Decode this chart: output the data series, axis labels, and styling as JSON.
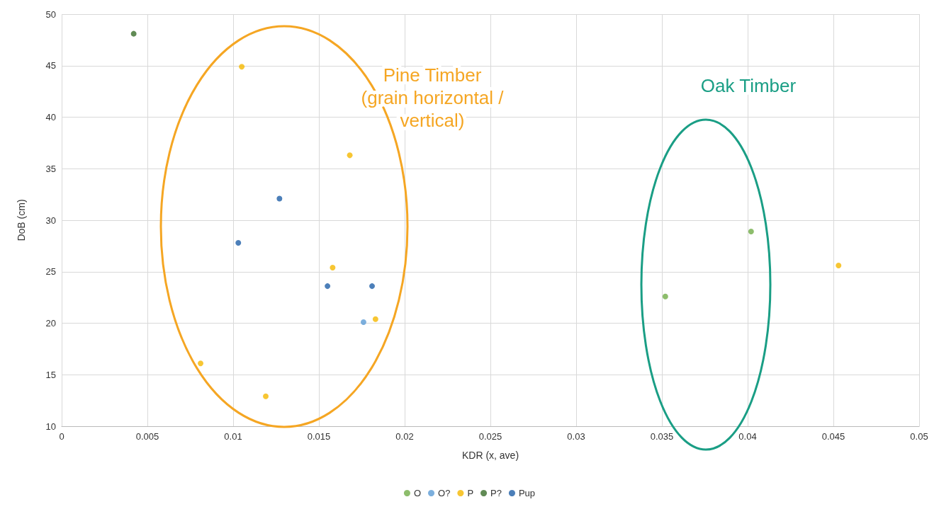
{
  "chart_data": {
    "type": "scatter",
    "xlabel": "KDR (x, ave)",
    "ylabel": "DoB (cm)",
    "xlim": [
      0,
      0.05
    ],
    "xticks": [
      0,
      0.005,
      0.01,
      0.015,
      0.02,
      0.025,
      0.03,
      0.035,
      0.04,
      0.045,
      0.05
    ],
    "ylim": [
      10,
      50
    ],
    "yticks": [
      10,
      15,
      20,
      25,
      30,
      35,
      40,
      45,
      50
    ],
    "grid": true,
    "legend": "bottom",
    "marker": "circle",
    "series": [
      {
        "name": "O",
        "color": "#70ad47",
        "x": [
          0.0402,
          0.0352
        ],
        "values": [
          28.9,
          22.6
        ]
      },
      {
        "name": "O?",
        "color": "#5b9bd5",
        "x": [
          0.0176
        ],
        "values": [
          20.1
        ]
      },
      {
        "name": "P",
        "color": "#f5b800",
        "x": [
          0.0105,
          0.0168,
          0.0158,
          0.0183,
          0.0081,
          0.0119,
          0.0453
        ],
        "values": [
          44.9,
          36.3,
          25.4,
          20.4,
          16.1,
          12.9,
          25.6
        ]
      },
      {
        "name": "P?",
        "color": "#3a6e2a",
        "x": [
          0.0042
        ],
        "values": [
          48.1
        ]
      },
      {
        "name": "Pup",
        "color": "#1f5fa8",
        "x": [
          0.0127,
          0.0103,
          0.0155,
          0.0181
        ],
        "values": [
          32.1,
          27.8,
          23.6,
          23.6
        ]
      }
    ],
    "annotations": [
      "Pine Timber\n(grain horizontal /\nvertical)",
      "Oak Timber"
    ]
  }
}
